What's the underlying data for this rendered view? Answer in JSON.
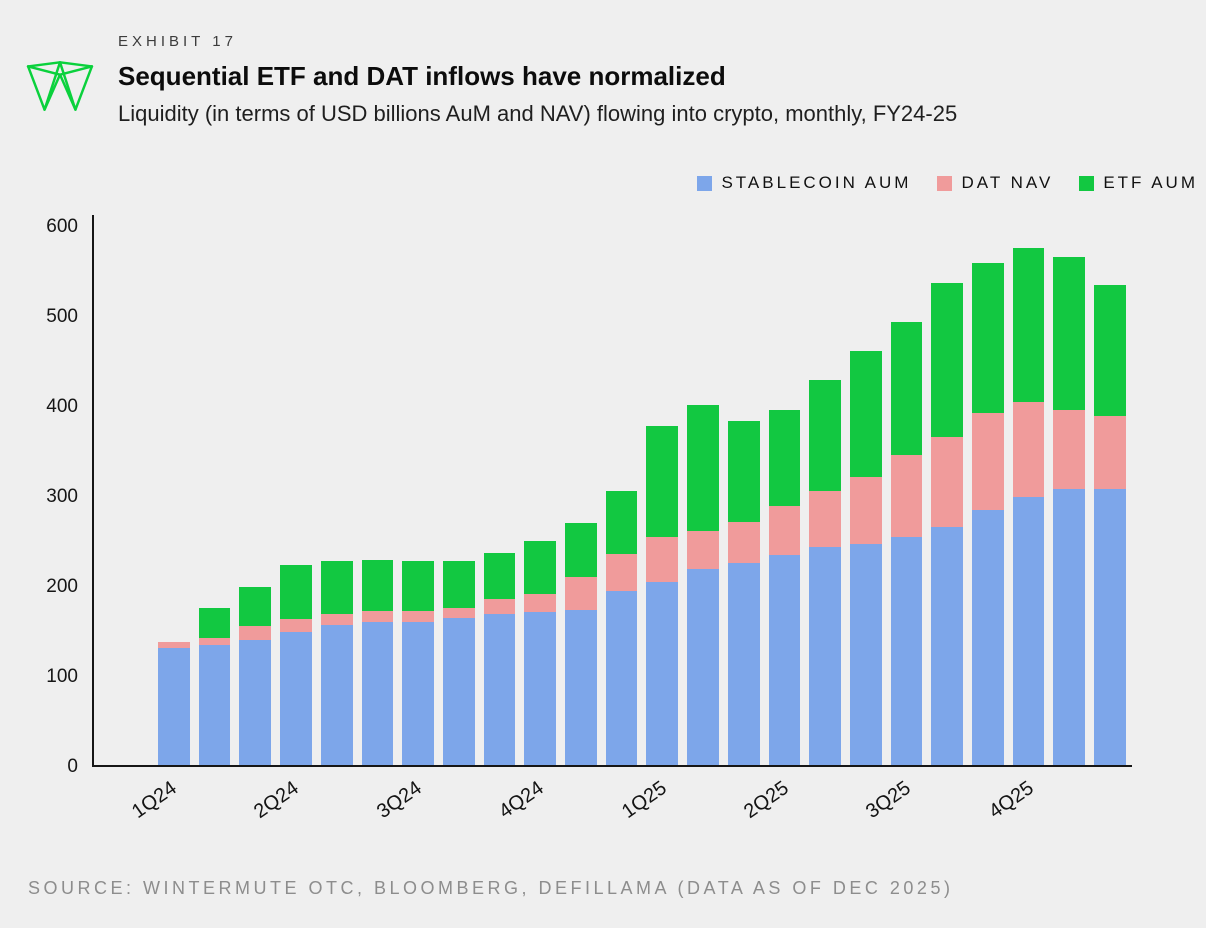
{
  "header": {
    "exhibit": "EXHIBIT 17",
    "title": "Sequential ETF and DAT inflows have normalized",
    "subtitle": "Liquidity (in terms of USD billions AuM and NAV) flowing into crypto, monthly, FY24-25"
  },
  "legend": [
    {
      "label": "STABLECOIN AUM",
      "color": "#7da6ea"
    },
    {
      "label": "DAT NAV",
      "color": "#f09b9b"
    },
    {
      "label": "ETF AUM",
      "color": "#12c841"
    }
  ],
  "source": "SOURCE: WINTERMUTE OTC, BLOOMBERG, DEFILLAMA (DATA AS OF DEC 2025)",
  "colors": {
    "background": "#efefef",
    "axis": "#161616",
    "logo_green": "#0ad13c",
    "stablecoin_blue": "#7da6ea",
    "dat_pink": "#f09b9b",
    "etf_green": "#12c841"
  },
  "chart_data": {
    "type": "bar",
    "stacked": true,
    "title": "Sequential ETF and DAT inflows have normalized",
    "subtitle": "Liquidity (in terms of USD billions AuM and NAV) flowing into crypto, monthly, FY24-25",
    "unit": "USD billions",
    "months": 24,
    "bars_per_quarter_label": 3,
    "x_labels": [
      "1Q24",
      "2Q24",
      "3Q24",
      "4Q24",
      "1Q25",
      "2Q25",
      "3Q25",
      "4Q25"
    ],
    "ylim": [
      0,
      600
    ],
    "yticks": [
      0,
      100,
      200,
      300,
      400,
      500,
      600
    ],
    "grid": false,
    "legend_position": "top-right",
    "series": [
      {
        "name": "STABLECOIN AUM",
        "color": "#7da6ea",
        "values": [
          130,
          133,
          139,
          148,
          156,
          159,
          159,
          163,
          168,
          170,
          172,
          193,
          203,
          218,
          225,
          233,
          242,
          246,
          253,
          265,
          283,
          298,
          307,
          307
        ]
      },
      {
        "name": "DAT NAV",
        "color": "#f09b9b",
        "values": [
          7,
          8,
          16,
          14,
          12,
          12,
          12,
          11,
          17,
          20,
          37,
          42,
          50,
          42,
          45,
          55,
          63,
          74,
          92,
          100,
          108,
          105,
          88,
          81
        ]
      },
      {
        "name": "ETF AUM",
        "color": "#12c841",
        "values": [
          0,
          34,
          43,
          60,
          59,
          57,
          56,
          53,
          51,
          59,
          60,
          70,
          124,
          140,
          112,
          107,
          123,
          140,
          147,
          171,
          167,
          171,
          169,
          145
        ]
      }
    ],
    "stack_order_bottom_to_top": [
      "STABLECOIN AUM",
      "DAT NAV",
      "ETF AUM"
    ]
  }
}
